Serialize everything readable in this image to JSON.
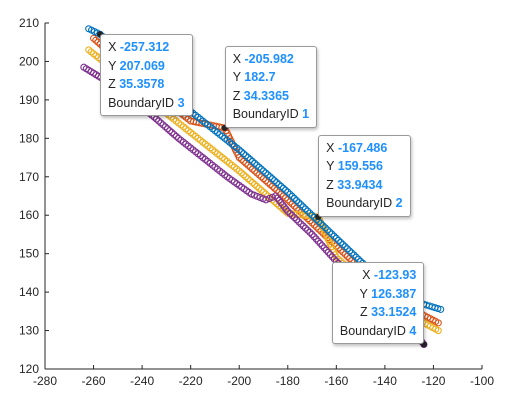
{
  "chart_data": {
    "type": "scatter",
    "title": "",
    "xlabel": "",
    "ylabel": "",
    "xlim": [
      -280,
      -100
    ],
    "ylim": [
      120,
      210
    ],
    "xticks": [
      "-280",
      "-240",
      "-220",
      "-200",
      "-180",
      "-160",
      "-140",
      "-120",
      "-100",
      "-260"
    ],
    "xtick_values": [
      -280,
      -240,
      -220,
      -200,
      -180,
      -160,
      -140,
      -120,
      -100,
      -260
    ],
    "yticks": [
      "120",
      "130",
      "140",
      "150",
      "160",
      "170",
      "180",
      "190",
      "200",
      "210"
    ],
    "ytick_values": [
      120,
      130,
      140,
      150,
      160,
      170,
      180,
      190,
      200,
      210
    ],
    "grid": false,
    "marker": "open-circle",
    "series": [
      {
        "boundary_id": 1,
        "color": "#d95319",
        "points": [
          [
            -260,
            206
          ],
          [
            -250,
            200.5
          ],
          [
            -240,
            195
          ],
          [
            -230,
            189.5
          ],
          [
            -220,
            184.5
          ],
          [
            -205.982,
            182.7
          ],
          [
            -200,
            175
          ],
          [
            -190,
            169.5
          ],
          [
            -180,
            164
          ],
          [
            -170,
            158
          ],
          [
            -160,
            152
          ],
          [
            -150,
            146
          ],
          [
            -140,
            140.5
          ],
          [
            -130,
            136
          ],
          [
            -118,
            132
          ]
        ]
      },
      {
        "boundary_id": 2,
        "color": "#edb120",
        "points": [
          [
            -262,
            203
          ],
          [
            -250,
            197
          ],
          [
            -240,
            191.5
          ],
          [
            -230,
            186.5
          ],
          [
            -220,
            181.5
          ],
          [
            -210,
            176.5
          ],
          [
            -200,
            171.5
          ],
          [
            -190,
            166
          ],
          [
            -180,
            160.5
          ],
          [
            -167.486,
            159.556
          ],
          [
            -160,
            149
          ],
          [
            -150,
            143.5
          ],
          [
            -140,
            138
          ],
          [
            -130,
            134
          ],
          [
            -118,
            130
          ]
        ]
      },
      {
        "boundary_id": 3,
        "color": "#0072bd",
        "points": [
          [
            -262,
            208.5
          ],
          [
            -257.312,
            207.069
          ],
          [
            -250,
            203
          ],
          [
            -240,
            197.5
          ],
          [
            -230,
            192
          ],
          [
            -220,
            187
          ],
          [
            -210,
            182
          ],
          [
            -200,
            177
          ],
          [
            -190,
            171.5
          ],
          [
            -180,
            166
          ],
          [
            -170,
            160
          ],
          [
            -160,
            154
          ],
          [
            -150,
            148
          ],
          [
            -140,
            142.5
          ],
          [
            -130,
            138
          ],
          [
            -117,
            135.5
          ]
        ]
      },
      {
        "boundary_id": 4,
        "color": "#7e2f8e",
        "points": [
          [
            -264,
            198.5
          ],
          [
            -255,
            195
          ],
          [
            -245,
            190.5
          ],
          [
            -235,
            185.5
          ],
          [
            -225,
            180
          ],
          [
            -215,
            175
          ],
          [
            -205,
            170
          ],
          [
            -195,
            165.5
          ],
          [
            -189,
            164
          ],
          [
            -185,
            165
          ],
          [
            -180,
            161
          ],
          [
            -170,
            155
          ],
          [
            -160,
            148
          ],
          [
            -150,
            142
          ],
          [
            -140,
            136.5
          ],
          [
            -130,
            131.5
          ],
          [
            -123.93,
            126.387
          ]
        ]
      }
    ],
    "datatips": [
      {
        "x_label": "X",
        "x": "-257.312",
        "y_label": "Y",
        "y": "207.069",
        "z_label": "Z",
        "z": "35.3578",
        "id_label": "BoundaryID",
        "id": "3",
        "color": "#0072bd",
        "anchor": "lower-right"
      },
      {
        "x_label": "X",
        "x": "-205.982",
        "y_label": "Y",
        "y": "182.7",
        "z_label": "Z",
        "z": "34.3365",
        "id_label": "BoundaryID",
        "id": "1",
        "color": "#d95319",
        "anchor": "upper-right"
      },
      {
        "x_label": "X",
        "x": "-167.486",
        "y_label": "Y",
        "y": "159.556",
        "z_label": "Z",
        "z": "33.9434",
        "id_label": "BoundaryID",
        "id": "2",
        "color": "#edb120",
        "anchor": "upper-right"
      },
      {
        "x_label": "X",
        "x": "-123.93",
        "y_label": "Y",
        "y": "126.387",
        "z_label": "Z",
        "z": "33.1524",
        "id_label": "BoundaryID",
        "id": "4",
        "color": "#7e2f8e",
        "anchor": "upper-left"
      }
    ]
  }
}
